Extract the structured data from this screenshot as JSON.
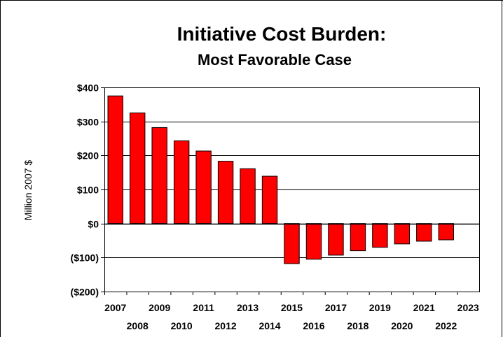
{
  "chart_data": {
    "type": "bar",
    "title": "Initiative Cost Burden:",
    "subtitle": "Most Favorable Case",
    "xlabel": "",
    "ylabel": "Million 2007 $",
    "categories": [
      "2007",
      "2008",
      "2009",
      "2010",
      "2011",
      "2012",
      "2013",
      "2014",
      "2015",
      "2016",
      "2017",
      "2018",
      "2019",
      "2020",
      "2021",
      "2022",
      "2023"
    ],
    "values": [
      375,
      325,
      282,
      243,
      213,
      183,
      161,
      139,
      -118,
      -105,
      -93,
      -80,
      -70,
      -60,
      -52,
      -48,
      null
    ],
    "yticks": [
      400,
      300,
      200,
      100,
      0,
      -100,
      -200
    ],
    "ytick_labels": [
      "$400",
      "$300",
      "$200",
      "$100",
      "$0",
      "($100)",
      "($200)"
    ],
    "ylim": [
      -200,
      400
    ],
    "grid": true,
    "legend": "none",
    "bar_color": "#ff0000",
    "bar_border_color": "#000000"
  }
}
